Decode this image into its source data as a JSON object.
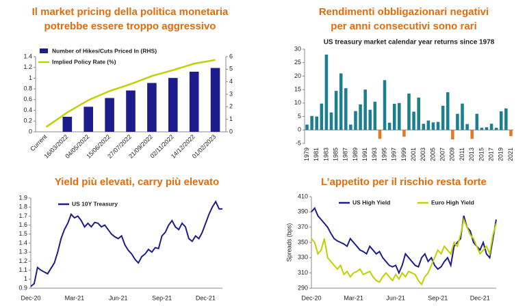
{
  "chart_data": [
    {
      "type": "combo",
      "title": [
        "Il market pricing della politica monetaria",
        "potrebbe essere troppo aggressivo"
      ],
      "categories": [
        "Current",
        "16/03/2022",
        "04/05/2022",
        "15/06/2022",
        "27/07/2022",
        "21/09/2022",
        "02/11/2022",
        "14/12/2022",
        "01/02/2023"
      ],
      "series": [
        {
          "name": "Number of Hikes/Cuts Priced In (RHS)",
          "type": "bar",
          "axis": "y2",
          "color": "#1c1c8c",
          "values": [
            null,
            1.2,
            2.0,
            2.7,
            3.3,
            3.9,
            4.3,
            4.8,
            5.1
          ]
        },
        {
          "name": "Implied Policy Rate (%)",
          "type": "line",
          "color": "#bfd200",
          "values": [
            0.09,
            0.36,
            0.59,
            0.76,
            0.89,
            1.04,
            1.15,
            1.27,
            1.34
          ]
        }
      ],
      "ylim": [
        0,
        1.4
      ],
      "yticks": [
        0,
        0.2,
        0.4,
        0.6,
        0.8,
        1.0,
        1.2,
        1.4
      ],
      "y2lim": [
        0,
        6
      ],
      "y2ticks": [
        0,
        1,
        2,
        3,
        4,
        5,
        6
      ]
    },
    {
      "type": "bar",
      "title": [
        "Rendimenti obbligazionari negativi",
        "per anni consecutivi sono rari"
      ],
      "subtitle": "US treasury market calendar year returns since 1978",
      "categories": [
        "1979",
        null,
        "1981",
        null,
        "1983",
        null,
        "1985",
        null,
        "1987",
        null,
        "1989",
        null,
        "1991",
        null,
        "1993",
        null,
        "1995",
        null,
        "1997",
        null,
        "1999",
        null,
        "2001",
        null,
        "2003",
        null,
        "2005",
        null,
        "2007",
        null,
        "2009",
        null,
        "2011",
        null,
        "2013",
        null,
        "2015",
        null,
        "2017",
        null,
        "2019",
        null,
        "2021"
      ],
      "values": [
        2,
        5.2,
        5,
        9.8,
        28,
        6.5,
        14.5,
        21,
        15.5,
        2,
        7,
        9.5,
        15,
        7.5,
        10.5,
        -3.3,
        18.5,
        2.7,
        9.7,
        10,
        -2.5,
        13.5,
        6.8,
        12,
        2.3,
        3.5,
        2.8,
        3,
        9,
        14,
        -3.5,
        6,
        9.8,
        2.2,
        -3.3,
        6,
        0.8,
        1,
        2.3,
        0.8,
        6.9,
        8,
        -2.3
      ],
      "color": "#1b7f8e",
      "negative_color": "#e87722",
      "ylim": [
        -5,
        30
      ],
      "yticks": [
        -5,
        0,
        5,
        10,
        15,
        20,
        25,
        30
      ]
    },
    {
      "type": "line",
      "title": "Yield più elevati, carry più  elevato",
      "categories": [
        "Dec-20",
        null,
        null,
        null,
        null,
        null,
        null,
        null,
        null,
        null,
        null,
        null,
        null,
        "Mar-21",
        null,
        null,
        null,
        null,
        null,
        null,
        null,
        null,
        null,
        null,
        null,
        null,
        "Jun-21",
        null,
        null,
        null,
        null,
        null,
        null,
        null,
        null,
        null,
        null,
        null,
        null,
        "Sep-21",
        null,
        null,
        null,
        null,
        null,
        null,
        null,
        null,
        null,
        null,
        null,
        null,
        "Dec-21",
        null,
        null,
        null,
        null,
        null
      ],
      "series": [
        {
          "name": "US 10Y Treasury",
          "color": "#1c1c8c",
          "values": [
            0.92,
            0.95,
            1.13,
            1.1,
            1.08,
            1.06,
            1.12,
            1.18,
            1.3,
            1.45,
            1.55,
            1.62,
            1.72,
            1.68,
            1.7,
            1.65,
            1.58,
            1.62,
            1.58,
            1.63,
            1.62,
            1.58,
            1.6,
            1.55,
            1.5,
            1.47,
            1.45,
            1.48,
            1.38,
            1.32,
            1.28,
            1.22,
            1.18,
            1.25,
            1.28,
            1.33,
            1.3,
            1.35,
            1.34,
            1.48,
            1.52,
            1.6,
            1.65,
            1.58,
            1.55,
            1.62,
            1.58,
            1.45,
            1.42,
            1.48,
            1.45,
            1.52,
            1.62,
            1.72,
            1.8,
            1.86,
            1.78,
            1.78
          ]
        }
      ],
      "ylim": [
        0.9,
        1.9
      ],
      "yticks": [
        0.9,
        1,
        1.1,
        1.2,
        1.3,
        1.4,
        1.5,
        1.6,
        1.7,
        1.8,
        1.9
      ]
    },
    {
      "type": "line",
      "title": "L’appetito per il rischio resta forte",
      "y_label": "Spreads (bps)",
      "categories": [
        "Dec-20",
        null,
        null,
        null,
        null,
        null,
        null,
        null,
        null,
        null,
        null,
        null,
        null,
        "Mar-21",
        null,
        null,
        null,
        null,
        null,
        null,
        null,
        null,
        null,
        null,
        null,
        null,
        "Jun-21",
        null,
        null,
        null,
        null,
        null,
        null,
        null,
        null,
        null,
        null,
        null,
        null,
        "Sep-21",
        null,
        null,
        null,
        null,
        null,
        null,
        null,
        null,
        null,
        null,
        null,
        null,
        "Dec-21",
        null,
        null,
        null,
        null,
        null
      ],
      "series": [
        {
          "name": "US High Yield",
          "color": "#1c1c8c",
          "values": [
            390,
            395,
            385,
            380,
            375,
            370,
            362,
            355,
            352,
            350,
            348,
            345,
            355,
            350,
            345,
            340,
            338,
            335,
            345,
            340,
            335,
            338,
            330,
            325,
            320,
            318,
            320,
            310,
            320,
            335,
            330,
            325,
            320,
            318,
            330,
            335,
            325,
            330,
            320,
            315,
            318,
            325,
            330,
            320,
            345,
            350,
            355,
            385,
            370,
            365,
            350,
            345,
            340,
            350,
            335,
            330,
            355,
            380
          ]
        },
        {
          "name": "Euro High Yield",
          "color": "#bfd200",
          "values": [
            355,
            350,
            335,
            340,
            355,
            330,
            325,
            320,
            315,
            320,
            308,
            312,
            305,
            310,
            312,
            315,
            308,
            310,
            312,
            305,
            300,
            298,
            305,
            310,
            305,
            300,
            308,
            302,
            310,
            305,
            312,
            310,
            308,
            300,
            295,
            305,
            310,
            320,
            330,
            340,
            335,
            345,
            340,
            335,
            350,
            345,
            360,
            380,
            370,
            360,
            355,
            345,
            335,
            340,
            345,
            335,
            360,
            375
          ]
        }
      ],
      "ylim": [
        290,
        410
      ],
      "yticks": [
        290,
        310,
        330,
        350,
        370,
        390,
        410
      ]
    }
  ]
}
